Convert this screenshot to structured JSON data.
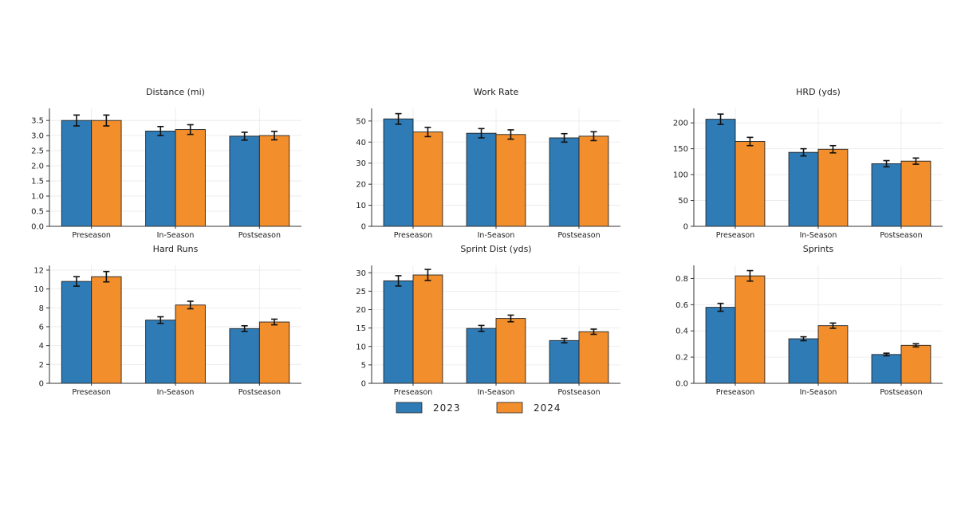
{
  "colors": {
    "2023": "#2f7bb6",
    "2024": "#f28e2b",
    "edge": "#222222",
    "grid": "#e8e8e8"
  },
  "legend": {
    "placement": "bottom-center",
    "entries": [
      "2023",
      "2024"
    ]
  },
  "chart_data": [
    {
      "type": "bar",
      "title": "Distance (mi)",
      "categories": [
        "Preseason",
        "In-Season",
        "Postseason"
      ],
      "series": [
        {
          "name": "2023",
          "values": [
            3.5,
            3.15,
            2.98
          ],
          "errors": [
            0.18,
            0.15,
            0.13
          ]
        },
        {
          "name": "2024",
          "values": [
            3.5,
            3.2,
            3.0
          ],
          "errors": [
            0.18,
            0.16,
            0.14
          ]
        }
      ],
      "ylim": [
        0,
        3.9
      ],
      "yticks": [
        0.0,
        0.5,
        1.0,
        1.5,
        2.0,
        2.5,
        3.0,
        3.5
      ],
      "ytick_labels": [
        "0.0",
        "0.5",
        "1.0",
        "1.5",
        "2.0",
        "2.5",
        "3.0",
        "3.5"
      ],
      "grid": true
    },
    {
      "type": "bar",
      "title": "Work Rate",
      "categories": [
        "Preseason",
        "In-Season",
        "Postseason"
      ],
      "series": [
        {
          "name": "2023",
          "values": [
            51,
            44.2,
            42
          ],
          "errors": [
            2.5,
            2.2,
            2.0
          ]
        },
        {
          "name": "2024",
          "values": [
            44.8,
            43.6,
            42.8
          ],
          "errors": [
            2.2,
            2.2,
            2.1
          ]
        }
      ],
      "ylim": [
        0,
        56
      ],
      "yticks": [
        0,
        10,
        20,
        30,
        40,
        50
      ],
      "ytick_labels": [
        "0",
        "10",
        "20",
        "30",
        "40",
        "50"
      ],
      "grid": true
    },
    {
      "type": "bar",
      "title": "HRD (yds)",
      "categories": [
        "Preseason",
        "In-Season",
        "Postseason"
      ],
      "series": [
        {
          "name": "2023",
          "values": [
            207,
            143,
            121
          ],
          "errors": [
            10,
            7,
            6
          ]
        },
        {
          "name": "2024",
          "values": [
            164,
            149,
            126
          ],
          "errors": [
            8,
            7,
            6
          ]
        }
      ],
      "ylim": [
        0,
        228
      ],
      "yticks": [
        0,
        50,
        100,
        150,
        200
      ],
      "ytick_labels": [
        "0",
        "50",
        "100",
        "150",
        "200"
      ],
      "grid": true
    },
    {
      "type": "bar",
      "title": "Hard Runs",
      "categories": [
        "Preseason",
        "In-Season",
        "Postseason"
      ],
      "series": [
        {
          "name": "2023",
          "values": [
            10.8,
            6.7,
            5.8
          ],
          "errors": [
            0.5,
            0.35,
            0.3
          ]
        },
        {
          "name": "2024",
          "values": [
            11.3,
            8.3,
            6.5
          ],
          "errors": [
            0.55,
            0.4,
            0.3
          ]
        }
      ],
      "ylim": [
        0,
        12.5
      ],
      "yticks": [
        0,
        2,
        4,
        6,
        8,
        10,
        12
      ],
      "ytick_labels": [
        "0",
        "2",
        "4",
        "6",
        "8",
        "10",
        "12"
      ],
      "grid": true
    },
    {
      "type": "bar",
      "title": "Sprint Dist (yds)",
      "categories": [
        "Preseason",
        "In-Season",
        "Postseason"
      ],
      "series": [
        {
          "name": "2023",
          "values": [
            27.8,
            14.9,
            11.6
          ],
          "errors": [
            1.4,
            0.8,
            0.6
          ]
        },
        {
          "name": "2024",
          "values": [
            29.4,
            17.6,
            14.0
          ],
          "errors": [
            1.5,
            0.9,
            0.7
          ]
        }
      ],
      "ylim": [
        0,
        32
      ],
      "yticks": [
        0,
        5,
        10,
        15,
        20,
        25,
        30
      ],
      "ytick_labels": [
        "0",
        "5",
        "10",
        "15",
        "20",
        "25",
        "30"
      ],
      "grid": true
    },
    {
      "type": "bar",
      "title": "Sprints",
      "categories": [
        "Preseason",
        "In-Season",
        "Postseason"
      ],
      "series": [
        {
          "name": "2023",
          "values": [
            0.58,
            0.34,
            0.22
          ],
          "errors": [
            0.03,
            0.015,
            0.01
          ]
        },
        {
          "name": "2024",
          "values": [
            0.82,
            0.44,
            0.29
          ],
          "errors": [
            0.04,
            0.02,
            0.012
          ]
        }
      ],
      "ylim": [
        0,
        0.9
      ],
      "yticks": [
        0.0,
        0.2,
        0.4,
        0.6,
        0.8
      ],
      "ytick_labels": [
        "0.0",
        "0.2",
        "0.4",
        "0.6",
        "0.8"
      ],
      "grid": true
    }
  ]
}
